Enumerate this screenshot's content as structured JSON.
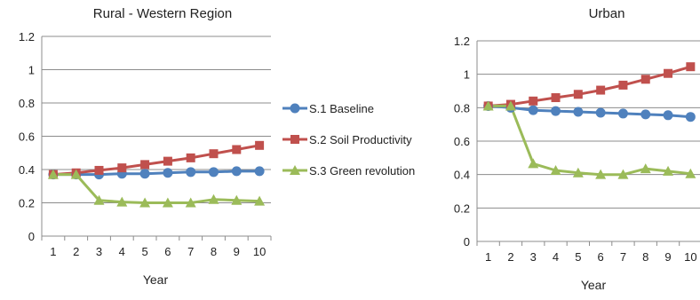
{
  "legend": {
    "items": [
      {
        "label": "S.1 Baseline",
        "color": "#4f81bd",
        "marker": "circle"
      },
      {
        "label": "S.2 Soil Productivity",
        "color": "#c0504d",
        "marker": "square"
      },
      {
        "label": "S.3 Green revolution",
        "color": "#9bbb59",
        "marker": "triangle"
      }
    ]
  },
  "chart_data": [
    {
      "type": "line",
      "title": "Rural - Western Region",
      "xlabel": "Year",
      "ylabel": "",
      "x": [
        1,
        2,
        3,
        4,
        5,
        6,
        7,
        8,
        9,
        10
      ],
      "ylim": [
        0,
        1.2
      ],
      "yticks": [
        "0",
        "0.2",
        "0.4",
        "0.6",
        "0.8",
        "1",
        "1.2"
      ],
      "grid": true,
      "series": [
        {
          "name": "S.1 Baseline",
          "color": "#4f81bd",
          "marker": "circle",
          "values": [
            0.37,
            0.37,
            0.37,
            0.375,
            0.375,
            0.38,
            0.385,
            0.385,
            0.39,
            0.39
          ]
        },
        {
          "name": "S.2 Soil Productivity",
          "color": "#c0504d",
          "marker": "square",
          "values": [
            0.37,
            0.38,
            0.395,
            0.41,
            0.43,
            0.45,
            0.47,
            0.495,
            0.52,
            0.545
          ]
        },
        {
          "name": "S.3 Green revolution",
          "color": "#9bbb59",
          "marker": "triangle",
          "values": [
            0.37,
            0.37,
            0.215,
            0.205,
            0.2,
            0.2,
            0.2,
            0.22,
            0.215,
            0.21
          ]
        }
      ]
    },
    {
      "type": "line",
      "title": "Urban",
      "xlabel": "Year",
      "ylabel": "",
      "x": [
        1,
        2,
        3,
        4,
        5,
        6,
        7,
        8,
        9,
        10
      ],
      "ylim": [
        0,
        1.2
      ],
      "yticks": [
        "0",
        "0.2",
        "0.4",
        "0.6",
        "0.8",
        "1",
        "1.2"
      ],
      "grid": true,
      "series": [
        {
          "name": "S.1 Baseline",
          "color": "#4f81bd",
          "marker": "circle",
          "values": [
            0.81,
            0.8,
            0.785,
            0.78,
            0.775,
            0.77,
            0.765,
            0.76,
            0.755,
            0.745
          ]
        },
        {
          "name": "S.2 Soil Productivity",
          "color": "#c0504d",
          "marker": "square",
          "values": [
            0.81,
            0.82,
            0.84,
            0.86,
            0.88,
            0.905,
            0.935,
            0.97,
            1.005,
            1.045
          ]
        },
        {
          "name": "S.3 Green revolution",
          "color": "#9bbb59",
          "marker": "triangle",
          "values": [
            0.81,
            0.81,
            0.465,
            0.425,
            0.41,
            0.4,
            0.4,
            0.435,
            0.42,
            0.405
          ]
        }
      ]
    }
  ]
}
